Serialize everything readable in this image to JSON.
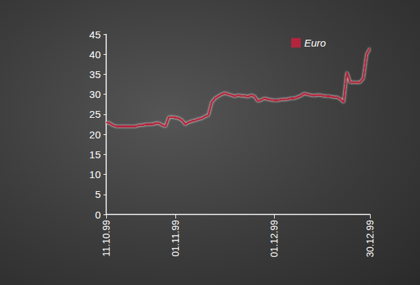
{
  "chart_data": {
    "type": "line",
    "categories": [
      "11.10.99",
      null,
      null,
      null,
      null,
      null,
      null,
      null,
      null,
      null,
      null,
      null,
      null,
      null,
      null,
      null,
      null,
      null,
      null,
      null,
      null,
      "01.11.99",
      null,
      null,
      null,
      null,
      null,
      null,
      null,
      null,
      null,
      null,
      null,
      null,
      null,
      null,
      null,
      null,
      null,
      null,
      null,
      null,
      null,
      null,
      null,
      null,
      null,
      null,
      null,
      null,
      null,
      "01.12.99",
      null,
      null,
      null,
      null,
      null,
      null,
      null,
      null,
      null,
      null,
      null,
      null,
      null,
      null,
      null,
      null,
      null,
      null,
      null,
      null,
      null,
      null,
      null,
      null,
      null,
      null,
      null,
      null,
      "30.12.99"
    ],
    "series": [
      {
        "name": "Euro",
        "color": "#b3253d",
        "values": [
          23,
          22.8,
          22.3,
          22,
          22,
          22,
          22,
          22,
          22,
          22,
          22.3,
          22.3,
          22.5,
          22.5,
          22.5,
          22.8,
          22.8,
          22.3,
          22,
          24.3,
          24.3,
          24.2,
          24,
          23.5,
          22.5,
          23,
          23.3,
          23.5,
          23.8,
          24,
          24.5,
          24.8,
          28,
          29,
          29.5,
          30,
          30.3,
          30,
          29.8,
          29.5,
          29.8,
          29.6,
          29.6,
          29.4,
          29.8,
          29.5,
          28.3,
          28.6,
          29,
          28.8,
          28.6,
          28.5,
          28.5,
          28.7,
          28.7,
          28.8,
          29,
          29,
          29.3,
          29.6,
          30.2,
          30,
          29.8,
          29.7,
          29.8,
          29.8,
          29.6,
          29.5,
          29.5,
          29.3,
          29.3,
          28.8,
          28,
          35.5,
          33,
          33,
          33,
          33,
          34,
          40,
          41.5
        ]
      }
    ],
    "ylim": [
      0,
      45
    ],
    "yticks": [
      0,
      5,
      10,
      15,
      20,
      25,
      30,
      35,
      40,
      45
    ],
    "grid": false,
    "legend": "upper right"
  }
}
